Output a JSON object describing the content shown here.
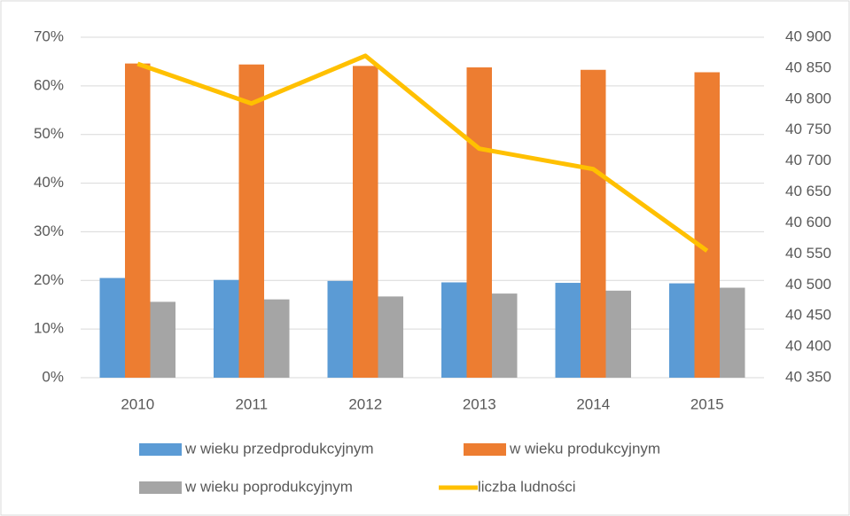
{
  "chart_data": {
    "type": "bar",
    "categories": [
      "2010",
      "2011",
      "2012",
      "2013",
      "2014",
      "2015"
    ],
    "ylim": [
      0,
      70
    ],
    "yticks": [
      {
        "value": 0,
        "label": "0%"
      },
      {
        "value": 10,
        "label": "10%"
      },
      {
        "value": 20,
        "label": "20%"
      },
      {
        "value": 30,
        "label": "30%"
      },
      {
        "value": 40,
        "label": "40%"
      },
      {
        "value": 50,
        "label": "50%"
      },
      {
        "value": 60,
        "label": "60%"
      },
      {
        "value": 70,
        "label": "70%"
      }
    ],
    "y2lim": [
      40350,
      40900
    ],
    "y2ticks": [
      {
        "value": 40350,
        "label": "40 350"
      },
      {
        "value": 40400,
        "label": "40 400"
      },
      {
        "value": 40450,
        "label": "40 450"
      },
      {
        "value": 40500,
        "label": "40 500"
      },
      {
        "value": 40550,
        "label": "40 550"
      },
      {
        "value": 40600,
        "label": "40 600"
      },
      {
        "value": 40650,
        "label": "40 650"
      },
      {
        "value": 40700,
        "label": "40 700"
      },
      {
        "value": 40750,
        "label": "40 750"
      },
      {
        "value": 40800,
        "label": "40 800"
      },
      {
        "value": 40850,
        "label": "40 850"
      },
      {
        "value": 40900,
        "label": "40 900"
      }
    ],
    "grid": true,
    "legend": "bottom",
    "series": [
      {
        "name": "w wieku przedprodukcyjnym",
        "color": "#5b9bd5",
        "values": [
          20.5,
          20.1,
          19.9,
          19.6,
          19.5,
          19.4
        ]
      },
      {
        "name": "w wieku produkcyjnym",
        "color": "#ed7d31",
        "values": [
          64.6,
          64.4,
          64.1,
          63.8,
          63.3,
          62.8
        ]
      },
      {
        "name": "w wieku poprodukcyjnym",
        "color": "#a5a5a5",
        "values": [
          15.6,
          16.1,
          16.7,
          17.3,
          17.9,
          18.5
        ]
      },
      {
        "name": "liczba ludności",
        "color": "#ffc000",
        "type": "line",
        "axis": "y2",
        "values": [
          40857,
          40793,
          40870,
          40720,
          40687,
          40555
        ]
      }
    ]
  }
}
